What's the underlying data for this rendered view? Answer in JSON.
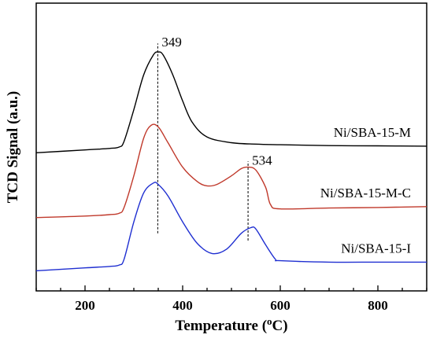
{
  "chart_data": {
    "type": "line",
    "title": "",
    "xlabel": "Temperature (",
    "xlabel_sup": "o",
    "xlabel_tail": "C)",
    "ylabel": "TCD Signal (a.u.)",
    "xlim": [
      100,
      900
    ],
    "ylim": [
      0,
      1
    ],
    "yticks_shown": false,
    "xticks": [
      200,
      400,
      600,
      800
    ],
    "xtick_labels": [
      "200",
      "400",
      "600",
      "800"
    ],
    "grid": false,
    "legend": "none",
    "series": [
      {
        "name": "Ni/SBA-15-M",
        "color": "#000000",
        "x": [
          100,
          200,
          250,
          270,
          280,
          300,
          320,
          340,
          350,
          360,
          380,
          400,
          420,
          450,
          500,
          550,
          600,
          700,
          800,
          900
        ],
        "y": [
          0.48,
          0.49,
          0.495,
          0.5,
          0.52,
          0.63,
          0.75,
          0.82,
          0.83,
          0.82,
          0.75,
          0.66,
          0.585,
          0.535,
          0.515,
          0.51,
          0.508,
          0.505,
          0.504,
          0.503
        ]
      },
      {
        "name": "Ni/SBA-15-M-C",
        "color": "#c0392b",
        "x": [
          100,
          200,
          250,
          270,
          280,
          300,
          320,
          335,
          350,
          370,
          400,
          430,
          450,
          470,
          500,
          520,
          534,
          550,
          570,
          580,
          600,
          700,
          800,
          900
        ],
        "y": [
          0.255,
          0.26,
          0.265,
          0.27,
          0.29,
          0.4,
          0.53,
          0.575,
          0.57,
          0.515,
          0.43,
          0.38,
          0.365,
          0.37,
          0.4,
          0.425,
          0.43,
          0.42,
          0.36,
          0.3,
          0.285,
          0.288,
          0.29,
          0.293
        ]
      },
      {
        "name": "Ni/SBA-15-I",
        "color": "#1f2fd1",
        "x": [
          100,
          200,
          250,
          270,
          280,
          300,
          320,
          340,
          350,
          370,
          400,
          430,
          460,
          490,
          520,
          540,
          550,
          570,
          590,
          600,
          700,
          800,
          900
        ],
        "y": [
          0.07,
          0.08,
          0.085,
          0.09,
          0.11,
          0.24,
          0.34,
          0.375,
          0.37,
          0.33,
          0.24,
          0.165,
          0.13,
          0.145,
          0.2,
          0.22,
          0.215,
          0.16,
          0.11,
          0.105,
          0.1,
          0.1,
          0.1
        ]
      }
    ],
    "annotations": [
      {
        "text": "349",
        "x": 349,
        "line_from": 0.2,
        "line_to": 0.86
      },
      {
        "text": "534",
        "x": 534,
        "line_from": 0.175,
        "line_to": 0.45
      }
    ]
  }
}
